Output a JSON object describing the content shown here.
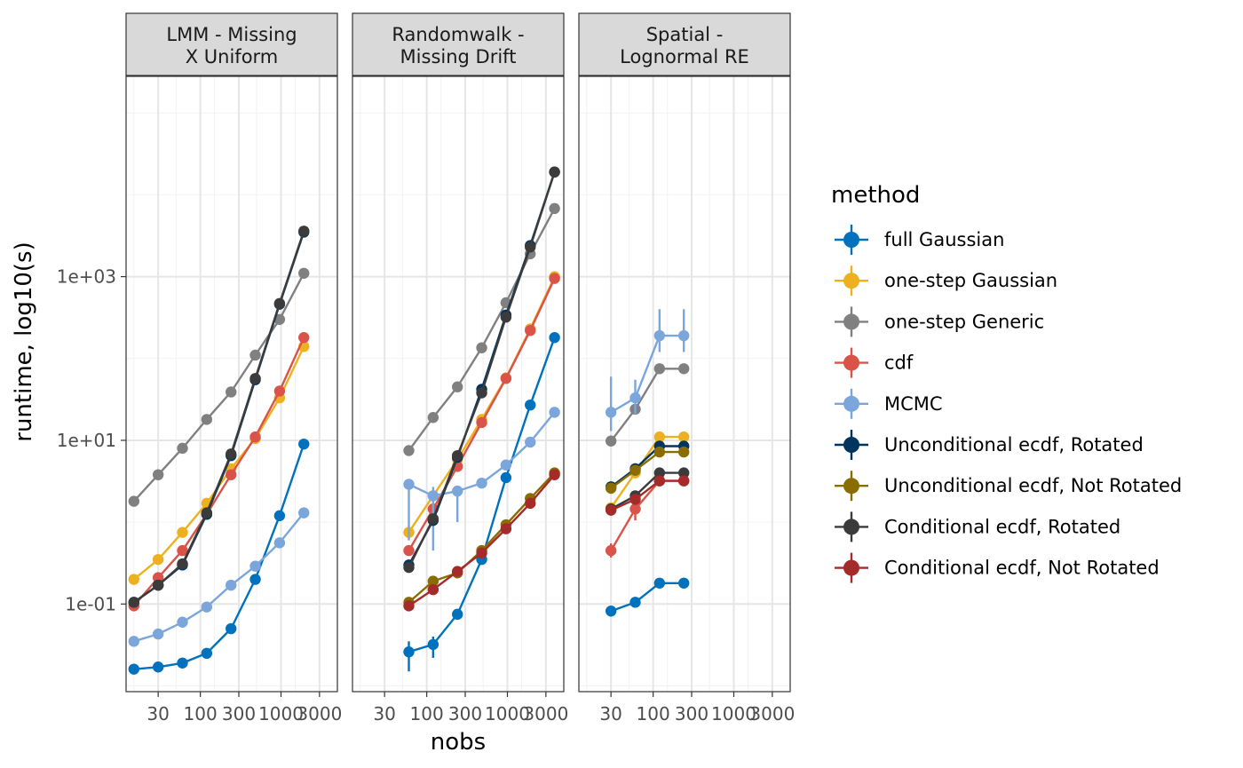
{
  "chart_data": {
    "type": "line",
    "xlabel": "nobs",
    "ylabel": "runtime, log10(s)",
    "x_scale": "log10",
    "y_scale": "log10",
    "x_ticks": [
      30,
      100,
      300,
      1000,
      3000
    ],
    "x_tick_labels": [
      "30",
      "100",
      "300",
      "1000",
      "3000"
    ],
    "y_ticks": [
      0.1,
      10,
      1000
    ],
    "y_tick_labels": [
      "1e-01",
      "1e+01",
      "1e+03"
    ],
    "xlim": [
      12,
      5000
    ],
    "ylim": [
      0.0085,
      280000
    ],
    "grid": true,
    "legend": {
      "title": "method",
      "placement": "right",
      "entries": [
        {
          "label": "full Gaussian",
          "color": "#0072BD"
        },
        {
          "label": "one-step Gaussian",
          "color": "#EDB120"
        },
        {
          "label": "one-step Generic",
          "color": "#808080"
        },
        {
          "label": "cdf",
          "color": "#D95349"
        },
        {
          "label": "MCMC",
          "color": "#7AA6DC"
        },
        {
          "label": "Unconditional ecdf, Rotated",
          "color": "#003560"
        },
        {
          "label": "Unconditional ecdf, Not Rotated",
          "color": "#8A6D00"
        },
        {
          "label": "Conditional ecdf, Rotated",
          "color": "#3B3B3B"
        },
        {
          "label": "Conditional ecdf, Not Rotated",
          "color": "#A52A2A"
        }
      ]
    },
    "panels": [
      {
        "title_lines": [
          "LMM - Missing",
          "X Uniform"
        ],
        "series": [
          {
            "name": "full Gaussian",
            "color": "#0072BD",
            "x": [
              15,
              30,
              60,
              120,
              240,
              480,
              960,
              1920
            ],
            "y": [
              0.016,
              0.017,
              0.019,
              0.025,
              0.05,
              0.2,
              1.2,
              9
            ]
          },
          {
            "name": "one-step Gaussian",
            "color": "#EDB120",
            "x": [
              15,
              30,
              60,
              120,
              240,
              480,
              960,
              1920
            ],
            "y": [
              0.2,
              0.35,
              0.75,
              1.7,
              4.5,
              10.5,
              33,
              140
            ]
          },
          {
            "name": "one-step Generic",
            "color": "#808080",
            "x": [
              15,
              30,
              60,
              120,
              240,
              480,
              960,
              1920
            ],
            "y": [
              1.8,
              3.8,
              8,
              18,
              39,
              110,
              300,
              1100
            ]
          },
          {
            "name": "cdf",
            "color": "#D95349",
            "x": [
              15,
              30,
              60,
              120,
              240,
              480,
              960,
              1920
            ],
            "y": [
              0.095,
              0.21,
              0.45,
              1.25,
              3.8,
              11,
              40,
              180
            ]
          },
          {
            "name": "MCMC",
            "color": "#7AA6DC",
            "x": [
              15,
              30,
              60,
              120,
              240,
              480,
              960,
              1920
            ],
            "y": [
              0.035,
              0.043,
              0.06,
              0.092,
              0.17,
              0.29,
              0.56,
              1.3
            ]
          },
          {
            "name": "Unconditional ecdf, Rotated",
            "color": "#003560",
            "x": [
              15,
              30,
              60,
              120,
              240,
              480,
              960,
              1920
            ],
            "y": [
              0.105,
              0.17,
              0.3,
              1.25,
              6.5,
              55,
              460,
              3500
            ]
          },
          {
            "name": "Conditional ecdf, Rotated",
            "color": "#3B3B3B",
            "x": [
              15,
              30,
              60,
              120,
              240,
              480,
              960,
              1920
            ],
            "y": [
              0.105,
              0.17,
              0.31,
              1.3,
              6.8,
              57,
              470,
              3600
            ]
          }
        ]
      },
      {
        "title_lines": [
          "Randomwalk -",
          "Missing Drift"
        ],
        "series": [
          {
            "name": "full Gaussian",
            "color": "#0072BD",
            "x": [
              60,
              120,
              240,
              480,
              960,
              1920,
              3840
            ],
            "y": [
              0.026,
              0.032,
              0.075,
              0.35,
              3.5,
              27,
              180
            ],
            "err_lo": [
              0.015,
              0.022,
              null,
              null,
              null,
              null,
              null
            ],
            "err_hi": [
              0.035,
              0.04,
              null,
              null,
              null,
              null,
              null
            ]
          },
          {
            "name": "one-step Gaussian",
            "color": "#EDB120",
            "x": [
              60,
              120,
              240,
              480,
              960,
              1920,
              3840
            ],
            "y": [
              0.75,
              2.1,
              5.8,
              18,
              58,
              230,
              1000
            ]
          },
          {
            "name": "one-step Generic",
            "color": "#808080",
            "x": [
              60,
              120,
              240,
              480,
              960,
              1920,
              3840
            ],
            "y": [
              7.5,
              19,
              45,
              135,
              480,
              1900,
              6800
            ]
          },
          {
            "name": "cdf",
            "color": "#D95349",
            "x": [
              60,
              120,
              240,
              480,
              960,
              1920,
              3840
            ],
            "y": [
              0.45,
              1.45,
              4.8,
              16.5,
              57,
              220,
              950
            ]
          },
          {
            "name": "MCMC",
            "color": "#7AA6DC",
            "x": [
              60,
              120,
              240,
              480,
              960,
              1920,
              3840
            ],
            "y": [
              2.9,
              2.1,
              2.4,
              3.0,
              5.0,
              9.5,
              22
            ],
            "err_lo": [
              0.6,
              0.45,
              1.0,
              null,
              null,
              null,
              null
            ],
            "err_hi": [
              3.3,
              2.7,
              2.8,
              null,
              null,
              null,
              null
            ]
          },
          {
            "name": "Unconditional ecdf, Rotated",
            "color": "#003560",
            "x": [
              60,
              120,
              240,
              480,
              960,
              1920,
              3840
            ],
            "y": [
              0.3,
              1.05,
              6.2,
              42,
              340,
              2400,
              19000
            ]
          },
          {
            "name": "Unconditional ecdf, Not Rotated",
            "color": "#8A6D00",
            "x": [
              60,
              120,
              240,
              480,
              960,
              1920,
              3840
            ],
            "y": [
              0.105,
              0.19,
              0.24,
              0.45,
              0.93,
              1.95,
              4.0
            ]
          },
          {
            "name": "Conditional ecdf, Rotated",
            "color": "#3B3B3B",
            "x": [
              60,
              120,
              240,
              480,
              960,
              1920,
              3840
            ],
            "y": [
              0.28,
              1.1,
              6.5,
              38,
              320,
              2300,
              19000
            ]
          },
          {
            "name": "Conditional ecdf, Not Rotated",
            "color": "#A52A2A",
            "x": [
              60,
              120,
              240,
              480,
              960,
              1920,
              3840
            ],
            "y": [
              0.095,
              0.15,
              0.25,
              0.42,
              0.83,
              1.7,
              3.8
            ]
          }
        ]
      },
      {
        "title_lines": [
          "Spatial -",
          "Lognormal RE"
        ],
        "series": [
          {
            "name": "full Gaussian",
            "color": "#0072BD",
            "x": [
              30,
              60,
              120,
              240
            ],
            "y": [
              0.082,
              0.105,
              0.18,
              0.18
            ]
          },
          {
            "name": "one-step Gaussian",
            "color": "#EDB120",
            "x": [
              30,
              60,
              120,
              240
            ],
            "y": [
              1.5,
              4.0,
              11,
              11
            ]
          },
          {
            "name": "one-step Generic",
            "color": "#808080",
            "x": [
              30,
              60,
              120,
              240
            ],
            "y": [
              9.8,
              24,
              75,
              75
            ]
          },
          {
            "name": "cdf",
            "color": "#D95349",
            "x": [
              30,
              60,
              120,
              240
            ],
            "y": [
              0.45,
              1.45,
              3.2,
              3.2
            ],
            "err_lo": [
              0.37,
              1.05,
              null,
              null
            ],
            "err_hi": [
              0.55,
              1.9,
              null,
              null
            ]
          },
          {
            "name": "MCMC",
            "color": "#7AA6DC",
            "x": [
              30,
              60,
              120,
              240
            ],
            "y": [
              22,
              33,
              190,
              190
            ],
            "err_lo": [
              13,
              21,
              120,
              120
            ],
            "err_hi": [
              60,
              55,
              400,
              400
            ]
          },
          {
            "name": "Unconditional ecdf, Rotated",
            "color": "#003560",
            "x": [
              30,
              60,
              120,
              240
            ],
            "y": [
              2.7,
              4.5,
              8.5,
              8.5
            ]
          },
          {
            "name": "Unconditional ecdf, Not Rotated",
            "color": "#8A6D00",
            "x": [
              30,
              60,
              120,
              240
            ],
            "y": [
              2.6,
              4.3,
              7.2,
              7.2
            ]
          },
          {
            "name": "Conditional ecdf, Rotated",
            "color": "#3B3B3B",
            "x": [
              30,
              60,
              120,
              240
            ],
            "y": [
              1.45,
              2.1,
              4.0,
              4.0
            ]
          },
          {
            "name": "Conditional ecdf, Not Rotated",
            "color": "#A52A2A",
            "x": [
              30,
              60,
              120,
              240
            ],
            "y": [
              1.4,
              1.9,
              3.2,
              3.2
            ]
          }
        ]
      }
    ]
  }
}
